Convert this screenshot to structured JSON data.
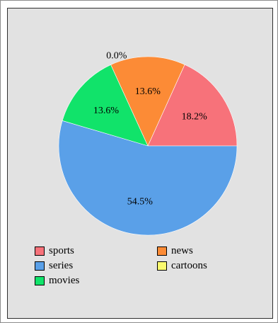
{
  "chart_data": {
    "type": "pie",
    "slices": [
      {
        "name": "sports",
        "value": 18.2,
        "label": "18.2%",
        "color": "#f7727a"
      },
      {
        "name": "news",
        "value": 13.6,
        "label": "13.6%",
        "color": "#fc8b36"
      },
      {
        "name": "cartoons",
        "value": 0.0,
        "label": "0.0%",
        "color": "#fafa6e"
      },
      {
        "name": "movies",
        "value": 13.6,
        "label": "13.6%",
        "color": "#11e36a"
      },
      {
        "name": "series",
        "value": 54.5,
        "label": "54.5%",
        "color": "#5aa0e8"
      }
    ],
    "legend": {
      "placement": "bottom",
      "columns": [
        [
          "sports",
          "series",
          "movies"
        ],
        [
          "news",
          "cartoons"
        ]
      ]
    }
  }
}
